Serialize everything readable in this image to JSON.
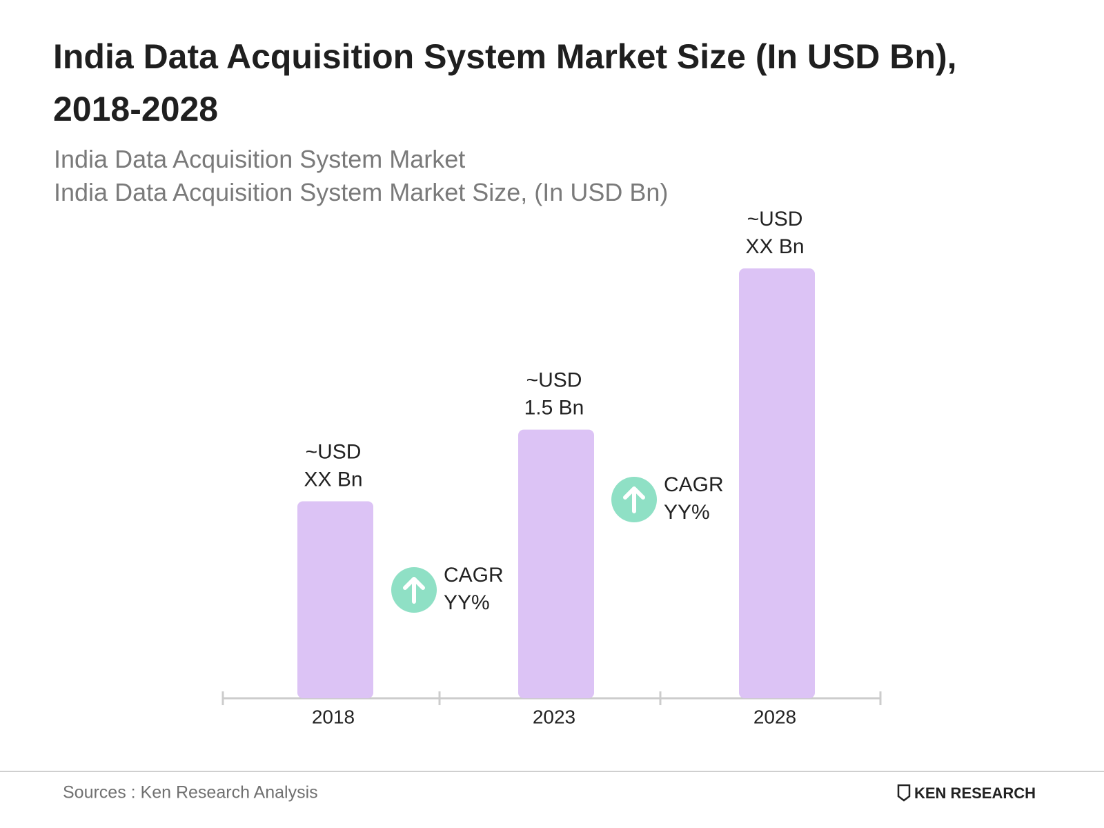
{
  "chart_data": {
    "type": "bar",
    "title": "India Data Acquisition System Market Size (In USD Bn), 2018-2028",
    "subtitle": [
      "India Data Acquisition System Market",
      "India Data Acquisition System Market Size, (In USD Bn)"
    ],
    "categories": [
      "2018",
      "2023",
      "2028"
    ],
    "values": [
      1.1,
      1.5,
      2.4
    ],
    "value_labels": [
      [
        "~USD",
        "XX Bn"
      ],
      [
        "~USD",
        "1.5 Bn"
      ],
      [
        "~USD",
        "XX Bn"
      ]
    ],
    "color": "#dcc3f5",
    "annotations": [
      [
        "CAGR",
        "YY%"
      ],
      [
        "CAGR",
        "YY%"
      ]
    ],
    "annotation_color": "#8fe0c5",
    "source": "Sources : Ken Research Analysis",
    "logo": "KEN RESEARCH"
  }
}
